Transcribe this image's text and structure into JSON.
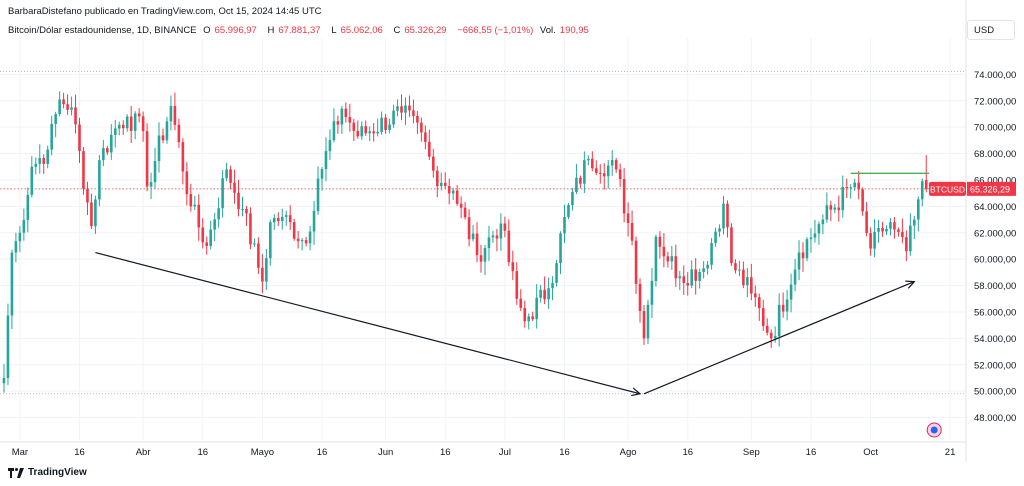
{
  "header": {
    "author_line": "BarbaraDistefano publicado en TradingView.com, Oct 15, 2024 14:45 UTC"
  },
  "legend": {
    "symbol": "Bitcoin/Dólar estadounidense, 1D, BINANCE",
    "o_label": "O",
    "o_value": "65.996,97",
    "h_label": "H",
    "h_value": "67.881,37",
    "l_label": "L",
    "l_value": "65.062,06",
    "c_label": "C",
    "c_value": "65.326,29",
    "change": "−666,55 (−1,01%)",
    "vol_label": "Vol.",
    "vol_value": "190,95"
  },
  "currency_button": "USD",
  "price_tag": {
    "symbol": "BTCUSD",
    "value": "65.326,29"
  },
  "logo_text": "TradingView",
  "colors": {
    "up": "#26a69a",
    "down": "#f23645",
    "grid": "#f0f3fa",
    "resistance": "#4caf50",
    "trend": "#131722"
  },
  "chart_data": {
    "type": "candlestick",
    "title": "Bitcoin/Dólar estadounidense, 1D, BINANCE",
    "y_axis": {
      "ticks": [
        "48.000,00",
        "50.000,00",
        "52.000,00",
        "54.000,00",
        "56.000,00",
        "58.000,00",
        "60.000,00",
        "62.000,00",
        "64.000,00",
        "66.000,00",
        "68.000,00",
        "70.000,00",
        "72.000,00",
        "74.000,00"
      ],
      "tick_values": [
        48000,
        50000,
        52000,
        54000,
        56000,
        58000,
        60000,
        62000,
        64000,
        66000,
        68000,
        70000,
        72000,
        74000
      ],
      "range": [
        46300,
        76300
      ]
    },
    "x_axis": {
      "ticks": [
        "Mar",
        "16",
        "Abr",
        "16",
        "Mayo",
        "16",
        "Jun",
        "16",
        "Jul",
        "16",
        "Ago",
        "16",
        "Sep",
        "16",
        "Oct",
        "21"
      ],
      "tick_dates": [
        "2024-03-01",
        "2024-03-16",
        "2024-04-01",
        "2024-04-16",
        "2024-05-01",
        "2024-05-16",
        "2024-06-01",
        "2024-06-16",
        "2024-07-01",
        "2024-07-16",
        "2024-08-01",
        "2024-08-16",
        "2024-09-01",
        "2024-09-16",
        "2024-10-01",
        "2024-10-21"
      ],
      "range": [
        "2024-02-25",
        "2024-10-25"
      ]
    },
    "anchors": [
      [
        "2024-02-26",
        51000
      ],
      [
        "2024-02-28",
        60500
      ],
      [
        "2024-03-01",
        62000
      ],
      [
        "2024-03-04",
        67000
      ],
      [
        "2024-03-08",
        68300
      ],
      [
        "2024-03-11",
        72100
      ],
      [
        "2024-03-14",
        71500
      ],
      [
        "2024-03-19",
        62500
      ],
      [
        "2024-03-21",
        67500
      ],
      [
        "2024-03-25",
        69900
      ],
      [
        "2024-03-28",
        70800
      ],
      [
        "2024-04-01",
        69700
      ],
      [
        "2024-04-02",
        65500
      ],
      [
        "2024-04-08",
        71600
      ],
      [
        "2024-04-13",
        64000
      ],
      [
        "2024-04-17",
        61000
      ],
      [
        "2024-04-22",
        66800
      ],
      [
        "2024-04-26",
        63800
      ],
      [
        "2024-05-01",
        58300
      ],
      [
        "2024-05-03",
        62800
      ],
      [
        "2024-05-06",
        63200
      ],
      [
        "2024-05-12",
        61200
      ],
      [
        "2024-05-15",
        66100
      ],
      [
        "2024-05-21",
        71400
      ],
      [
        "2024-05-25",
        69300
      ],
      [
        "2024-06-05",
        71100
      ],
      [
        "2024-06-10",
        69600
      ],
      [
        "2024-06-13",
        66700
      ],
      [
        "2024-06-18",
        65200
      ],
      [
        "2024-06-24",
        60300
      ],
      [
        "2024-06-30",
        62700
      ],
      [
        "2024-07-04",
        57000
      ],
      [
        "2024-07-06",
        55300
      ],
      [
        "2024-07-12",
        57800
      ],
      [
        "2024-07-17",
        64100
      ],
      [
        "2024-07-22",
        67600
      ],
      [
        "2024-07-29",
        66800
      ],
      [
        "2024-08-02",
        61400
      ],
      [
        "2024-08-05",
        54000
      ],
      [
        "2024-08-08",
        61700
      ],
      [
        "2024-08-14",
        58700
      ],
      [
        "2024-08-20",
        59300
      ],
      [
        "2024-08-25",
        64200
      ],
      [
        "2024-08-27",
        59700
      ],
      [
        "2024-09-01",
        57400
      ],
      [
        "2024-09-06",
        54000
      ],
      [
        "2024-09-13",
        60500
      ],
      [
        "2024-09-19",
        63000
      ],
      [
        "2024-09-27",
        65800
      ],
      [
        "2024-10-01",
        60800
      ],
      [
        "2024-10-04",
        62100
      ],
      [
        "2024-10-06",
        62800
      ],
      [
        "2024-10-10",
        60600
      ],
      [
        "2024-10-12",
        63000
      ],
      [
        "2024-10-14",
        65900
      ],
      [
        "2024-10-15",
        65326
      ]
    ],
    "final_candle": {
      "open": 65996.97,
      "high": 67881.37,
      "low": 65062.06,
      "close": 65326.29
    },
    "current_price": 65326.29,
    "resistance_line": {
      "from": "2024-09-26",
      "to": "2024-10-15",
      "value": 66500
    },
    "trend_arrows": [
      {
        "from": [
          "2024-03-20",
          60500
        ],
        "to": [
          "2024-08-04",
          49800
        ]
      },
      {
        "from": [
          "2024-08-05",
          49800
        ],
        "to": [
          "2024-10-12",
          58300
        ]
      }
    ]
  }
}
